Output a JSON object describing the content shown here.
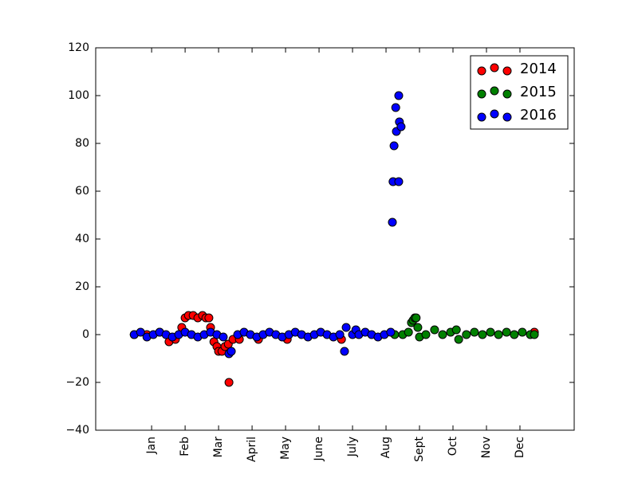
{
  "chart_data": {
    "type": "scatter",
    "xlim": [
      -0.67,
      13.62
    ],
    "ylim": [
      -40,
      120
    ],
    "xticks": [
      {
        "value": 1,
        "label": "Jan"
      },
      {
        "value": 2,
        "label": "Feb"
      },
      {
        "value": 3,
        "label": "Mar"
      },
      {
        "value": 4,
        "label": "April"
      },
      {
        "value": 5,
        "label": "May"
      },
      {
        "value": 6,
        "label": "June"
      },
      {
        "value": 7,
        "label": "July"
      },
      {
        "value": 8,
        "label": "Aug"
      },
      {
        "value": 9,
        "label": "Sept"
      },
      {
        "value": 10,
        "label": "Oct"
      },
      {
        "value": 11,
        "label": "Nov"
      },
      {
        "value": 12,
        "label": "Dec"
      }
    ],
    "yticks": [
      {
        "value": -40,
        "label": "−40"
      },
      {
        "value": -20,
        "label": "−20"
      },
      0,
      20,
      40,
      60,
      80,
      100,
      120
    ],
    "legend": "upper right",
    "series": [
      {
        "name": "2014",
        "color": "#ff0000",
        "x": [
          0.48,
          0.86,
          1.24,
          1.52,
          1.71,
          1.9,
          2.0,
          2.1,
          2.24,
          2.38,
          2.52,
          2.62,
          2.71,
          2.76,
          2.86,
          2.95,
          3.0,
          3.1,
          3.19,
          3.29,
          3.31,
          3.43,
          3.62,
          4.19,
          5.05,
          6.67,
          12.43
        ],
        "values": [
          0,
          0,
          1,
          -3,
          -2,
          3,
          7,
          8,
          8,
          7,
          8,
          7,
          7,
          3,
          -3,
          -5,
          -7,
          -7,
          -5,
          -4,
          -20,
          -2,
          -2,
          -2,
          -2,
          -2,
          1
        ]
      },
      {
        "name": "2015",
        "color": "#008000",
        "x": [
          8.26,
          8.5,
          8.67,
          8.76,
          8.81,
          8.86,
          8.9,
          8.95,
          9.0,
          9.19,
          9.45,
          9.69,
          9.93,
          10.1,
          10.17,
          10.4,
          10.64,
          10.88,
          11.12,
          11.36,
          11.6,
          11.83,
          12.07,
          12.31,
          12.43
        ],
        "values": [
          0,
          0,
          1,
          5,
          6,
          7,
          7,
          3,
          -1,
          0,
          2,
          0,
          1,
          2,
          -2,
          0,
          1,
          0,
          1,
          0,
          1,
          0,
          1,
          0,
          0
        ]
      },
      {
        "name": "2016",
        "color": "#0000ff",
        "x": [
          0.48,
          0.67,
          0.86,
          1.05,
          1.24,
          1.43,
          1.62,
          1.81,
          2.0,
          2.19,
          2.38,
          2.57,
          2.76,
          2.95,
          3.14,
          3.31,
          3.38,
          3.57,
          3.76,
          3.95,
          4.14,
          4.33,
          4.52,
          4.71,
          4.9,
          5.1,
          5.29,
          5.48,
          5.67,
          5.86,
          6.05,
          6.24,
          6.43,
          6.62,
          6.76,
          6.81,
          7.0,
          7.1,
          7.19,
          7.38,
          7.57,
          7.76,
          7.95,
          8.14,
          8.19,
          8.21,
          8.24,
          8.29,
          8.31,
          8.38,
          8.38,
          8.4,
          8.45
        ],
        "values": [
          0,
          1,
          -1,
          0,
          1,
          0,
          -1,
          0,
          1,
          0,
          -1,
          0,
          1,
          0,
          -1,
          -8,
          -7,
          0,
          1,
          0,
          -1,
          0,
          1,
          0,
          -1,
          0,
          1,
          0,
          -1,
          0,
          1,
          0,
          -1,
          0,
          -7,
          3,
          0,
          2,
          0,
          1,
          0,
          -1,
          0,
          1,
          47,
          64,
          79,
          95,
          85,
          100,
          64,
          89,
          87
        ]
      }
    ]
  }
}
